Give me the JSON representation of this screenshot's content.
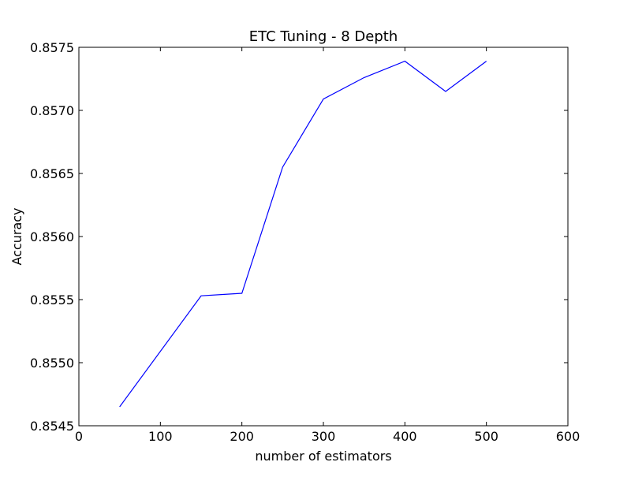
{
  "chart_data": {
    "type": "line",
    "title": "ETC Tuning - 8 Depth",
    "xlabel": "number of estimators",
    "ylabel": "Accuracy",
    "xlim": [
      0,
      600
    ],
    "ylim": [
      0.8545,
      0.8575
    ],
    "xticks": [
      0,
      100,
      200,
      300,
      400,
      500,
      600
    ],
    "xtick_labels": [
      "0",
      "100",
      "200",
      "300",
      "400",
      "500",
      "600"
    ],
    "yticks": [
      0.8545,
      0.855,
      0.8555,
      0.856,
      0.8565,
      0.857,
      0.8575
    ],
    "ytick_labels": [
      "0.8545",
      "0.8550",
      "0.8555",
      "0.8560",
      "0.8565",
      "0.8570",
      "0.8575"
    ],
    "grid": false,
    "legend": "none",
    "series": [
      {
        "color": "#0000ff",
        "x": [
          50,
          150,
          200,
          250,
          300,
          350,
          400,
          450,
          500
        ],
        "y": [
          0.85465,
          0.85553,
          0.85555,
          0.85655,
          0.85709,
          0.85726,
          0.85739,
          0.85715,
          0.85739
        ]
      }
    ]
  }
}
